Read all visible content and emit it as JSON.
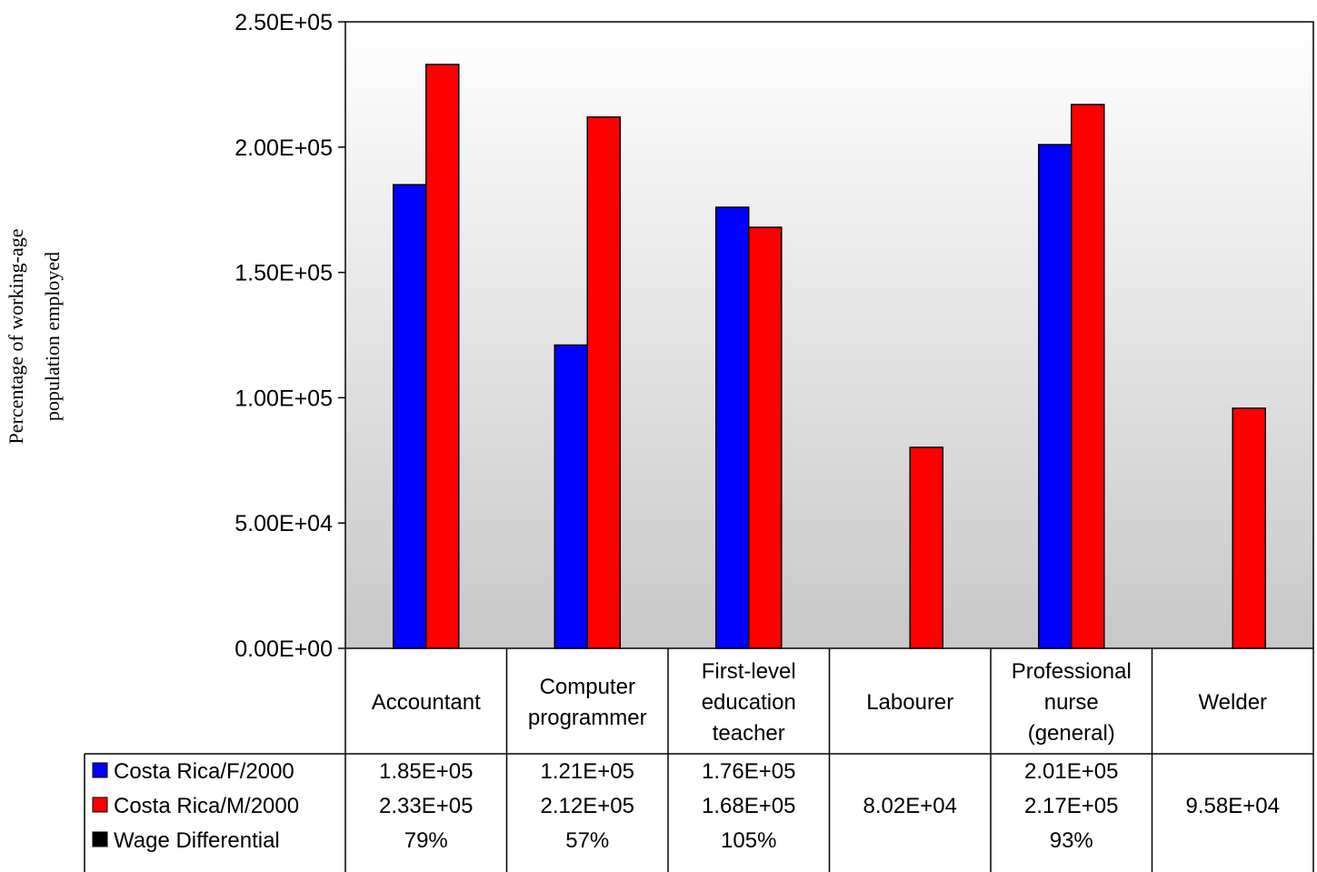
{
  "chart_data": {
    "type": "bar",
    "title": "",
    "ylabel_lines": [
      "Percentage of working-age",
      "population employed"
    ],
    "xlabel": "",
    "ylim": [
      0,
      250000
    ],
    "y_ticks": [
      {
        "value": 0,
        "label": "0.00E+00"
      },
      {
        "value": 50000,
        "label": "5.00E+04"
      },
      {
        "value": 100000,
        "label": "1.00E+05"
      },
      {
        "value": 150000,
        "label": "1.50E+05"
      },
      {
        "value": 200000,
        "label": "2.00E+05"
      },
      {
        "value": 250000,
        "label": "2.50E+05"
      }
    ],
    "categories": [
      [
        "Accountant"
      ],
      [
        "Computer",
        "programmer"
      ],
      [
        "First-level",
        "education",
        "teacher"
      ],
      [
        "Labourer"
      ],
      [
        "Professional",
        "nurse",
        "(general)"
      ],
      [
        "Welder"
      ]
    ],
    "series": [
      {
        "name": "Costa Rica/F/2000",
        "color": "#0000ff",
        "values": [
          185000,
          121000,
          176000,
          null,
          201000,
          null
        ],
        "labels": [
          "1.85E+05",
          "1.21E+05",
          "1.76E+05",
          "",
          "2.01E+05",
          ""
        ]
      },
      {
        "name": "Costa Rica/M/2000",
        "color": "#ff0000",
        "values": [
          233000,
          212000,
          168000,
          80200,
          217000,
          95800
        ],
        "labels": [
          "2.33E+05",
          "2.12E+05",
          "1.68E+05",
          "8.02E+04",
          "2.17E+05",
          "9.58E+04"
        ]
      },
      {
        "name": "Wage Differential",
        "color": "#000000",
        "values": [
          0.79,
          0.57,
          1.05,
          null,
          0.93,
          null
        ],
        "labels": [
          "79%",
          "57%",
          "105%",
          "",
          "93%",
          ""
        ]
      }
    ],
    "grid": false,
    "legend": "data-table",
    "plot_background": "gradient white to gray"
  }
}
